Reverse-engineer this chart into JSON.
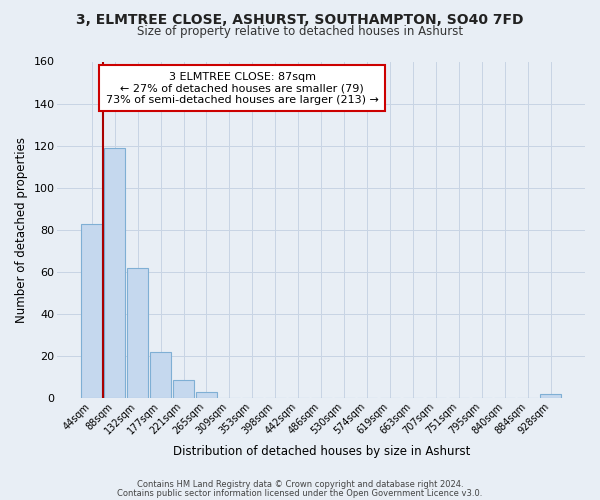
{
  "title_line1": "3, ELMTREE CLOSE, ASHURST, SOUTHAMPTON, SO40 7FD",
  "title_line2": "Size of property relative to detached houses in Ashurst",
  "xlabel": "Distribution of detached houses by size in Ashurst",
  "ylabel": "Number of detached properties",
  "bar_labels": [
    "44sqm",
    "88sqm",
    "132sqm",
    "177sqm",
    "221sqm",
    "265sqm",
    "309sqm",
    "353sqm",
    "398sqm",
    "442sqm",
    "486sqm",
    "530sqm",
    "574sqm",
    "619sqm",
    "663sqm",
    "707sqm",
    "751sqm",
    "795sqm",
    "840sqm",
    "884sqm",
    "928sqm"
  ],
  "bar_values": [
    83,
    119,
    62,
    22,
    9,
    3,
    0,
    0,
    0,
    0,
    0,
    0,
    0,
    0,
    0,
    0,
    0,
    0,
    0,
    0,
    2
  ],
  "bar_color": "#c5d8ee",
  "bar_edge_color": "#7fafd4",
  "property_line_x": 0.5,
  "annotation_title": "3 ELMTREE CLOSE: 87sqm",
  "annotation_line1": "← 27% of detached houses are smaller (79)",
  "annotation_line2": "73% of semi-detached houses are larger (213) →",
  "annotation_box_color": "#ffffff",
  "annotation_box_edge_color": "#cc0000",
  "red_line_color": "#aa0000",
  "grid_color": "#c8d4e4",
  "background_color": "#e8eef5",
  "ylim": [
    0,
    160
  ],
  "yticks": [
    0,
    20,
    40,
    60,
    80,
    100,
    120,
    140,
    160
  ],
  "footer_line1": "Contains HM Land Registry data © Crown copyright and database right 2024.",
  "footer_line2": "Contains public sector information licensed under the Open Government Licence v3.0."
}
